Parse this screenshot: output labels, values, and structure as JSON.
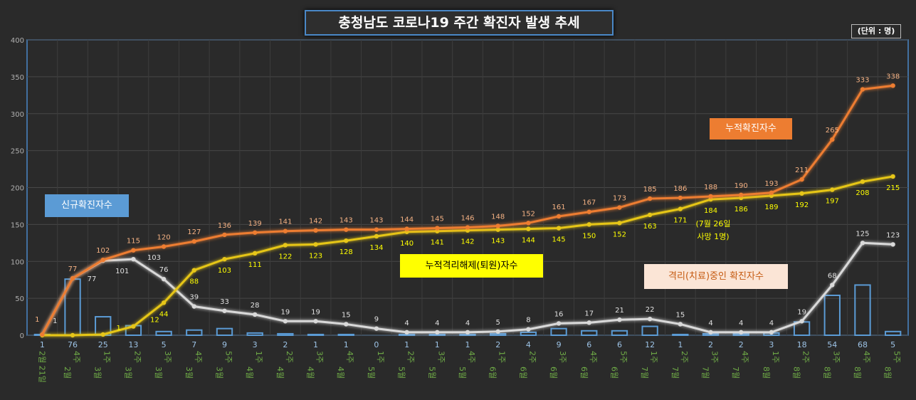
{
  "title": "충청남도 코로나19 주간 확진자 발생 추세",
  "unit": "(단위 : 명)",
  "series_labels": {
    "new_cases": "신규확진자수",
    "cumulative_cases": "누적확진자수",
    "cumulative_released": "누적격리해제(퇴원)자수",
    "active_cases": "격리(치료)중인 확진자수"
  },
  "annotation": {
    "line1": "(7월 26일",
    "line2": "사망 1명)"
  },
  "colors": {
    "cumulative_cases": "#ed7d31",
    "cumulative_released": "#ffd966",
    "active_cases": "#d9d9d9",
    "new_cases": "#5b9bd5",
    "category_label": "#70ad47"
  },
  "chart_data": {
    "type": "bar+line",
    "title": "충청남도 코로나19 주간 확진자 발생 추세",
    "categories": [
      "2월 21일",
      "2월 4주",
      "3월 1주",
      "3월 2주",
      "3월 3주",
      "3월 4주",
      "3월 5주",
      "4월 1주",
      "4월 2주",
      "4월 3주",
      "4월 4주",
      "5월 1주",
      "5월 2주",
      "5월 3주",
      "5월 4주",
      "6월 1주",
      "6월 2주",
      "6월 3주",
      "6월 4주",
      "6월 5주",
      "7월 1주",
      "7월 2주",
      "7월 3주",
      "7월 4주",
      "8월 1주",
      "8월 2주",
      "8월 3주",
      "8월 4주",
      "8월 5주"
    ],
    "category_lines": [
      [
        "2월 21일"
      ],
      [
        "2월",
        "4주"
      ],
      [
        "3월",
        "1주"
      ],
      [
        "3월",
        "2주"
      ],
      [
        "3월",
        "3주"
      ],
      [
        "3월",
        "4주"
      ],
      [
        "3월",
        "5주"
      ],
      [
        "4월",
        "1주"
      ],
      [
        "4월",
        "2주"
      ],
      [
        "4월",
        "3주"
      ],
      [
        "4월",
        "4주"
      ],
      [
        "5월",
        "1주"
      ],
      [
        "5월",
        "2주"
      ],
      [
        "5월",
        "3주"
      ],
      [
        "5월",
        "4주"
      ],
      [
        "6월",
        "1주"
      ],
      [
        "6월",
        "2주"
      ],
      [
        "6월",
        "3주"
      ],
      [
        "6월",
        "4주"
      ],
      [
        "6월",
        "5주"
      ],
      [
        "7월",
        "1주"
      ],
      [
        "7월",
        "2주"
      ],
      [
        "7월",
        "3주"
      ],
      [
        "7월",
        "4주"
      ],
      [
        "8월",
        "1주"
      ],
      [
        "8월",
        "2주"
      ],
      [
        "8월",
        "3주"
      ],
      [
        "8월",
        "4주"
      ],
      [
        "8월",
        "5주"
      ]
    ],
    "ylim": [
      0,
      400
    ],
    "yticks": [
      0,
      50,
      100,
      150,
      200,
      250,
      300,
      350,
      400
    ],
    "grid": true,
    "series": [
      {
        "name": "신규확진자수",
        "kind": "bar",
        "values": [
          1,
          76,
          25,
          13,
          5,
          7,
          9,
          3,
          2,
          1,
          1,
          0,
          1,
          1,
          1,
          2,
          4,
          9,
          6,
          6,
          12,
          1,
          2,
          2,
          3,
          18,
          54,
          68,
          5
        ]
      },
      {
        "name": "누적확진자수",
        "kind": "line",
        "values": [
          1,
          77,
          102,
          115,
          120,
          127,
          136,
          139,
          141,
          142,
          143,
          143,
          144,
          145,
          146,
          148,
          152,
          161,
          167,
          173,
          185,
          186,
          188,
          190,
          193,
          211,
          265,
          333,
          338
        ]
      },
      {
        "name": "누적격리해제(퇴원)자수",
        "kind": "line",
        "values": [
          0,
          0,
          1,
          12,
          44,
          88,
          103,
          111,
          122,
          123,
          128,
          134,
          140,
          141,
          142,
          143,
          144,
          145,
          150,
          152,
          163,
          171,
          184,
          186,
          189,
          192,
          197,
          208,
          215
        ]
      },
      {
        "name": "격리(치료)중인 확진자수",
        "kind": "line",
        "values": [
          1,
          77,
          101,
          103,
          76,
          39,
          33,
          28,
          19,
          19,
          15,
          9,
          4,
          4,
          4,
          5,
          8,
          16,
          17,
          21,
          22,
          15,
          4,
          4,
          4,
          19,
          68,
          125,
          123
        ]
      }
    ]
  }
}
